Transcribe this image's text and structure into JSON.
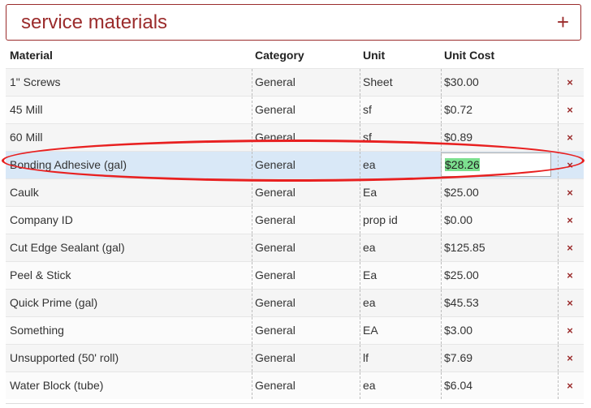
{
  "panel": {
    "title": "service materials",
    "add_icon": "plus-icon"
  },
  "table": {
    "columns": [
      "Material",
      "Category",
      "Unit",
      "Unit Cost"
    ],
    "rows": [
      {
        "material": "1\" Screws",
        "category": "General",
        "unit": "Sheet",
        "cost": "$30.00"
      },
      {
        "material": "45 Mill",
        "category": "General",
        "unit": "sf",
        "cost": "$0.72"
      },
      {
        "material": "60 Mill",
        "category": "General",
        "unit": "sf",
        "cost": "$0.89"
      },
      {
        "material": "Bonding Adhesive (gal)",
        "category": "General",
        "unit": "ea",
        "cost": "$28.26",
        "editing": true
      },
      {
        "material": "Caulk",
        "category": "General",
        "unit": "Ea",
        "cost": "$25.00"
      },
      {
        "material": "Company ID",
        "category": "General",
        "unit": "prop id",
        "cost": "$0.00"
      },
      {
        "material": "Cut Edge Sealant (gal)",
        "category": "General",
        "unit": "ea",
        "cost": "$125.85"
      },
      {
        "material": "Peel & Stick",
        "category": "General",
        "unit": "Ea",
        "cost": "$25.00"
      },
      {
        "material": "Quick Prime (gal)",
        "category": "General",
        "unit": "ea",
        "cost": "$45.53"
      },
      {
        "material": "Something",
        "category": "General",
        "unit": "EA",
        "cost": "$3.00"
      },
      {
        "material": "Unsupported (50' roll)",
        "category": "General",
        "unit": "lf",
        "cost": "$7.69"
      },
      {
        "material": "Water Block (tube)",
        "category": "General",
        "unit": "ea",
        "cost": "$6.04"
      }
    ],
    "delete_glyph": "×",
    "delete_icon": "close-icon"
  },
  "colors": {
    "accent": "#9b2c2c",
    "selected_row": "#d9e8f7",
    "text_highlight": "#7ce08f",
    "annotation": "#e82020"
  }
}
